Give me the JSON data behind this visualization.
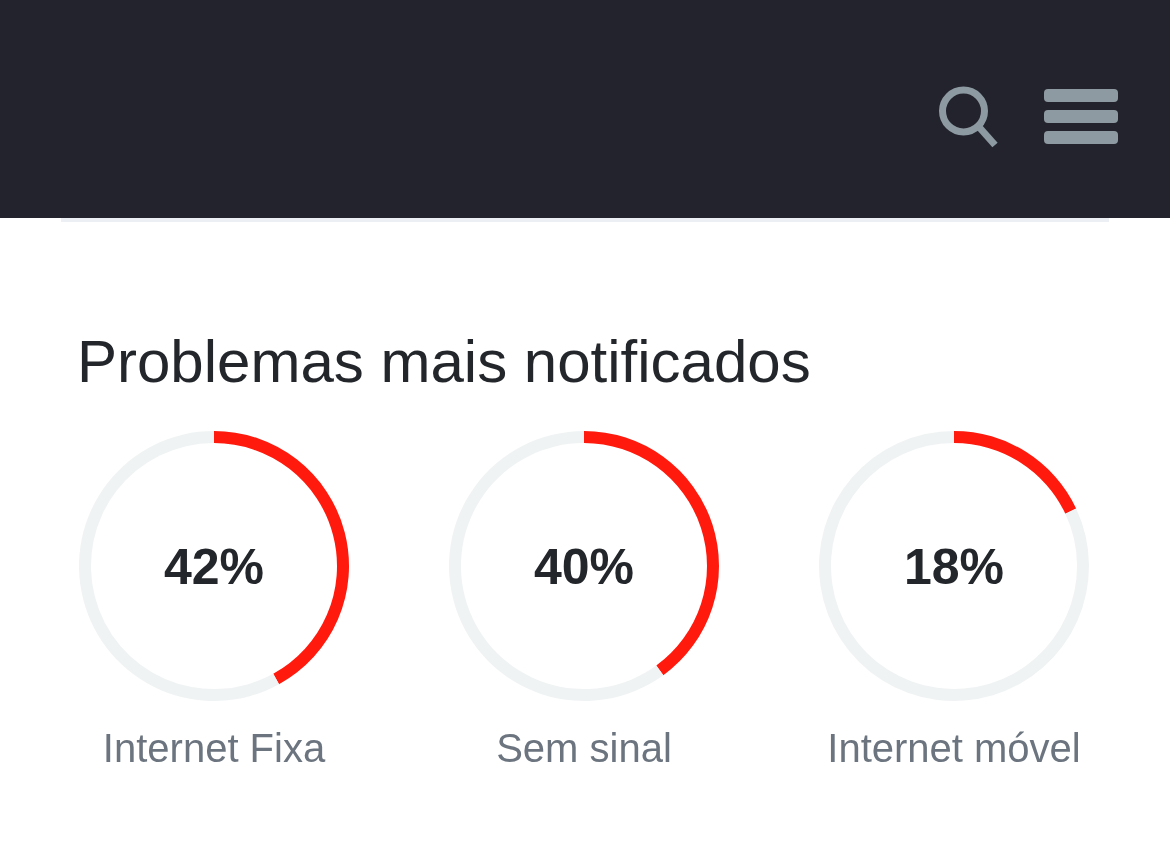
{
  "chart_data": [
    {
      "type": "other",
      "title": "Problemas mais notificados"
    },
    {
      "type": "donut",
      "title": "Internet Fixa",
      "categories": [
        null,
        null
      ],
      "values": [
        42,
        58
      ],
      "colors": [
        "#ff1a0d",
        "#f0f3f4"
      ],
      "annotations": [
        "42%"
      ]
    },
    {
      "type": "donut",
      "title": "Sem sinal",
      "categories": [
        null,
        null
      ],
      "values": [
        40,
        60
      ],
      "colors": [
        "#ff1a0d",
        "#f0f3f4"
      ],
      "annotations": [
        "40%"
      ]
    },
    {
      "type": "donut",
      "title": "Internet móvel",
      "categories": [
        null,
        null
      ],
      "values": [
        18,
        82
      ],
      "colors": [
        "#ff1a0d",
        "#f0f3f4"
      ],
      "annotations": [
        "18%"
      ]
    }
  ]
}
